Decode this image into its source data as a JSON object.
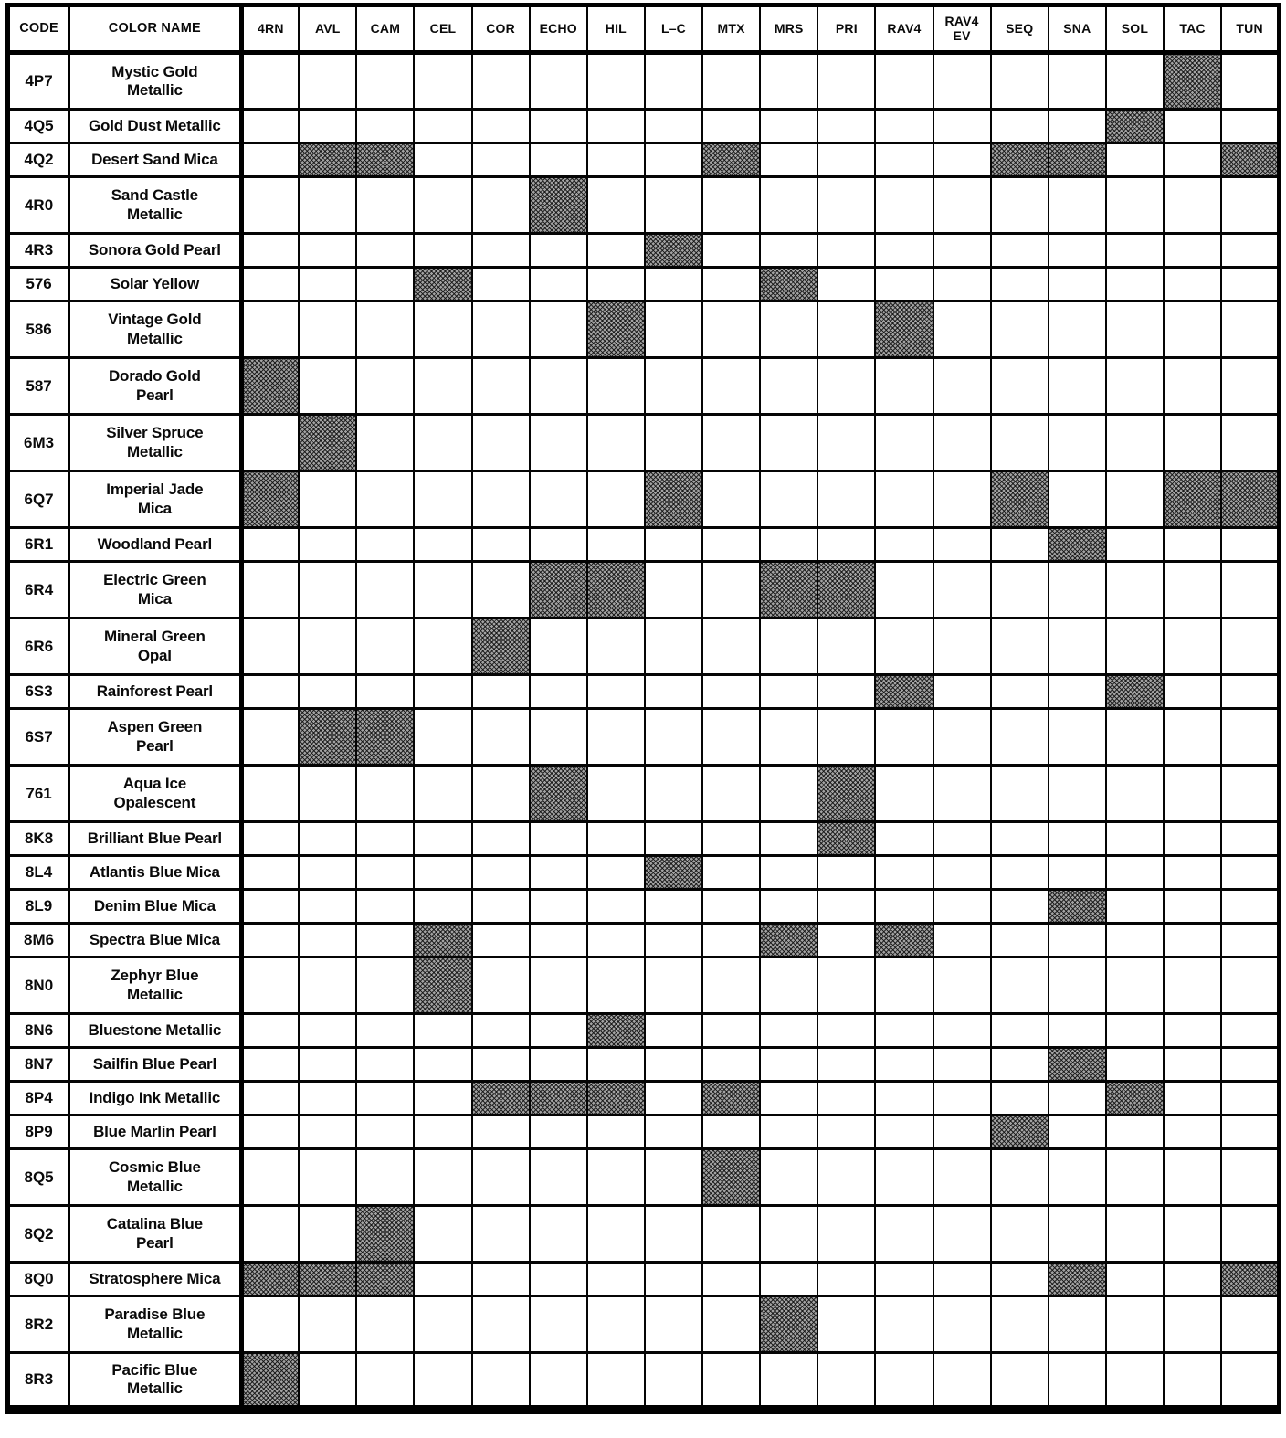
{
  "colors": {
    "line": "#000000",
    "paper": "#ffffff",
    "hatch_fill": "#a2a2a2",
    "hatch_line": "#0f0f0f"
  },
  "table": {
    "code_header": "CODE",
    "name_header": "COLOR NAME",
    "model_columns": [
      "4RN",
      "AVL",
      "CAM",
      "CEL",
      "COR",
      "ECHO",
      "HIL",
      "L–C",
      "MTX",
      "MRS",
      "PRI",
      "RAV4",
      "RAV4\nEV",
      "SEQ",
      "SNA",
      "SOL",
      "TAC",
      "TUN"
    ],
    "rows": [
      {
        "code": "4P7",
        "name": "Mystic Gold\nMetallic",
        "models": [
          "TAC"
        ]
      },
      {
        "code": "4Q5",
        "name": "Gold Dust Metallic",
        "models": [
          "SOL"
        ]
      },
      {
        "code": "4Q2",
        "name": "Desert Sand Mica",
        "models": [
          "AVL",
          "CAM",
          "MTX",
          "SEQ",
          "SNA",
          "TUN"
        ]
      },
      {
        "code": "4R0",
        "name": "Sand Castle\nMetallic",
        "models": [
          "ECHO"
        ]
      },
      {
        "code": "4R3",
        "name": "Sonora Gold Pearl",
        "models": [
          "L–C"
        ]
      },
      {
        "code": "576",
        "name": "Solar Yellow",
        "models": [
          "CEL",
          "MRS"
        ]
      },
      {
        "code": "586",
        "name": "Vintage Gold\nMetallic",
        "models": [
          "HIL",
          "RAV4"
        ]
      },
      {
        "code": "587",
        "name": "Dorado Gold\nPearl",
        "models": [
          "4RN"
        ]
      },
      {
        "code": "6M3",
        "name": "Silver Spruce\nMetallic",
        "models": [
          "AVL"
        ]
      },
      {
        "code": "6Q7",
        "name": "Imperial Jade\nMica",
        "models": [
          "4RN",
          "L–C",
          "SEQ",
          "TAC",
          "TUN"
        ]
      },
      {
        "code": "6R1",
        "name": "Woodland Pearl",
        "models": [
          "SNA"
        ]
      },
      {
        "code": "6R4",
        "name": "Electric Green\nMica",
        "models": [
          "ECHO",
          "HIL",
          "MRS",
          "PRI"
        ]
      },
      {
        "code": "6R6",
        "name": "Mineral Green\nOpal",
        "models": [
          "COR"
        ]
      },
      {
        "code": "6S3",
        "name": "Rainforest Pearl",
        "models": [
          "RAV4",
          "SOL"
        ]
      },
      {
        "code": "6S7",
        "name": "Aspen Green\nPearl",
        "models": [
          "AVL",
          "CAM"
        ]
      },
      {
        "code": "761",
        "name": "Aqua Ice\nOpalescent",
        "models": [
          "ECHO",
          "PRI"
        ]
      },
      {
        "code": "8K8",
        "name": "Brilliant Blue Pearl",
        "models": [
          "PRI"
        ]
      },
      {
        "code": "8L4",
        "name": "Atlantis Blue Mica",
        "models": [
          "L–C"
        ]
      },
      {
        "code": "8L9",
        "name": "Denim Blue Mica",
        "models": [
          "SNA"
        ]
      },
      {
        "code": "8M6",
        "name": "Spectra Blue Mica",
        "models": [
          "CEL",
          "MRS",
          "RAV4"
        ]
      },
      {
        "code": "8N0",
        "name": "Zephyr Blue\nMetallic",
        "models": [
          "CEL"
        ]
      },
      {
        "code": "8N6",
        "name": "Bluestone Metallic",
        "models": [
          "HIL"
        ]
      },
      {
        "code": "8N7",
        "name": "Sailfin Blue Pearl",
        "models": [
          "SNA"
        ]
      },
      {
        "code": "8P4",
        "name": "Indigo Ink Metallic",
        "models": [
          "COR",
          "ECHO",
          "HIL",
          "MTX",
          "SOL"
        ]
      },
      {
        "code": "8P9",
        "name": "Blue Marlin Pearl",
        "models": [
          "SEQ"
        ]
      },
      {
        "code": "8Q5",
        "name": "Cosmic Blue\nMetallic",
        "models": [
          "MTX"
        ]
      },
      {
        "code": "8Q2",
        "name": "Catalina Blue\nPearl",
        "models": [
          "CAM"
        ]
      },
      {
        "code": "8Q0",
        "name": "Stratosphere Mica",
        "models": [
          "4RN",
          "AVL",
          "CAM",
          "SNA",
          "TUN"
        ]
      },
      {
        "code": "8R2",
        "name": "Paradise Blue\nMetallic",
        "models": [
          "MRS"
        ]
      },
      {
        "code": "8R3",
        "name": "Pacific Blue\nMetallic",
        "models": [
          "4RN"
        ]
      }
    ]
  }
}
